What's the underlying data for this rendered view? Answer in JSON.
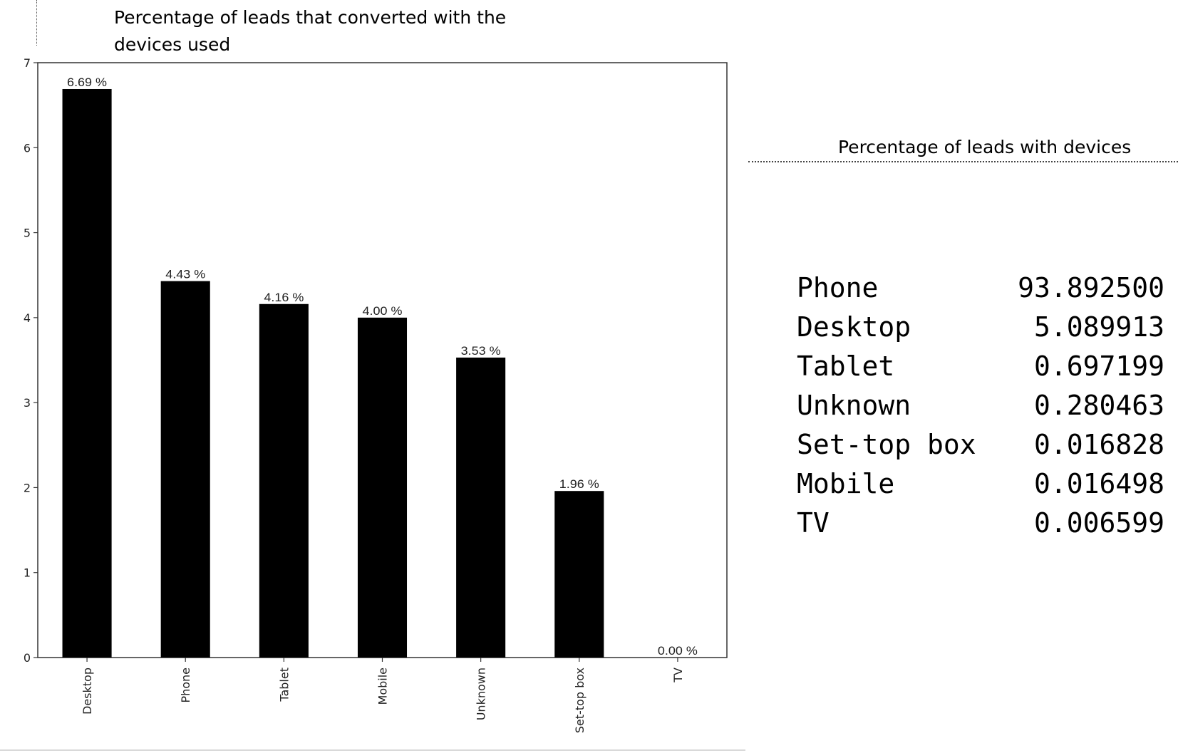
{
  "chart_title": "Percentage of leads that converted with the\ndevices used",
  "chart_data": {
    "type": "bar",
    "categories": [
      "Desktop",
      "Phone",
      "Tablet",
      "Mobile",
      "Unknown",
      "Set-top box",
      "TV"
    ],
    "values": [
      6.69,
      4.43,
      4.16,
      4.0,
      3.53,
      1.96,
      0.0
    ],
    "data_labels": [
      "6.69 %",
      "4.43 %",
      "4.16 %",
      "4.00 %",
      "3.53 %",
      "1.96 %",
      "0.00 %"
    ],
    "ylim": [
      0,
      7
    ],
    "yticks": [
      0,
      1,
      2,
      3,
      4,
      5,
      6,
      7
    ],
    "bar_color": "#000000",
    "grid": false,
    "xtick_rotation": "vertical"
  },
  "table": {
    "title": "Percentage of leads with devices",
    "rows": [
      {
        "name": "Phone",
        "value": "93.892500"
      },
      {
        "name": "Desktop",
        "value": "5.089913"
      },
      {
        "name": "Tablet",
        "value": "0.697199"
      },
      {
        "name": "Unknown",
        "value": "0.280463"
      },
      {
        "name": "Set-top box",
        "value": "0.016828"
      },
      {
        "name": "Mobile",
        "value": "0.016498"
      },
      {
        "name": "TV",
        "value": "0.006599"
      }
    ]
  }
}
